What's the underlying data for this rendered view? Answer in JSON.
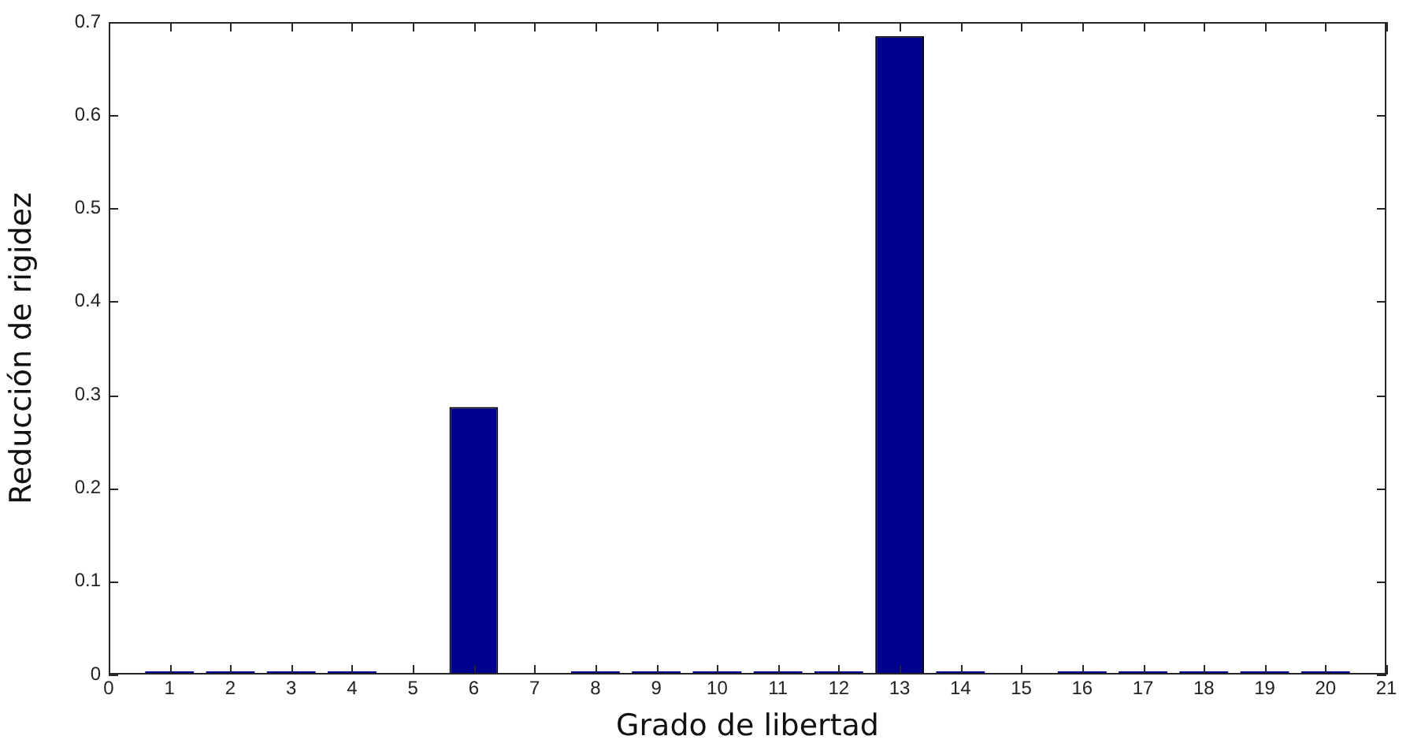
{
  "chart_data": {
    "type": "bar",
    "xlabel": "Grado de libertad",
    "ylabel": "Reducción de rigidez",
    "x": [
      1,
      2,
      3,
      4,
      5,
      6,
      7,
      8,
      9,
      10,
      11,
      12,
      13,
      14,
      15,
      16,
      17,
      18,
      19,
      20
    ],
    "values": [
      0,
      0,
      0,
      0,
      null,
      0.287,
      null,
      0,
      0,
      0,
      0,
      0,
      0.685,
      0,
      null,
      0,
      0,
      0,
      0,
      0
    ],
    "color": "#00008f",
    "xlim": [
      0,
      21
    ],
    "xticks": [
      0,
      1,
      2,
      3,
      4,
      5,
      6,
      7,
      8,
      9,
      10,
      11,
      12,
      13,
      14,
      15,
      16,
      17,
      18,
      19,
      20,
      21
    ],
    "ylim": [
      0,
      0.7
    ],
    "yticks": [
      0,
      0.1,
      0.2,
      0.3,
      0.4,
      0.5,
      0.6,
      0.7
    ]
  }
}
